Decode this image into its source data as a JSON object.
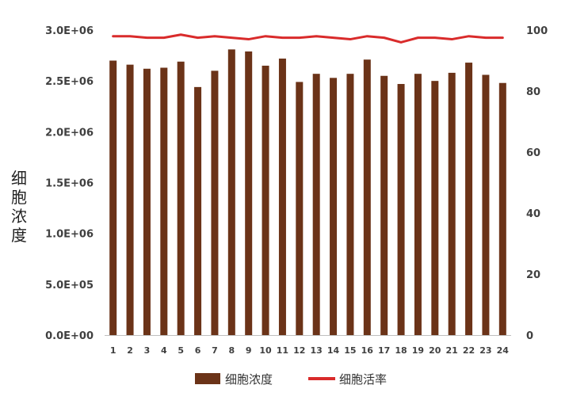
{
  "chart_data": {
    "type": "bar",
    "categories": [
      "1",
      "2",
      "3",
      "4",
      "5",
      "6",
      "7",
      "8",
      "9",
      "10",
      "11",
      "12",
      "13",
      "14",
      "15",
      "16",
      "17",
      "18",
      "19",
      "20",
      "21",
      "22",
      "23",
      "24"
    ],
    "series": [
      {
        "name": "细胞浓度",
        "type": "bar",
        "axis": "left",
        "color": "#6b3318",
        "values": [
          2700000,
          2660000,
          2620000,
          2630000,
          2690000,
          2440000,
          2600000,
          2810000,
          2790000,
          2650000,
          2720000,
          2490000,
          2570000,
          2530000,
          2570000,
          2710000,
          2550000,
          2470000,
          2570000,
          2500000,
          2580000,
          2680000,
          2560000,
          2480000
        ]
      },
      {
        "name": "细胞活率",
        "type": "line",
        "axis": "right",
        "color": "#d92b2b",
        "values": [
          98,
          98,
          97.5,
          97.5,
          98.5,
          97.5,
          98,
          97.5,
          97,
          98,
          97.5,
          97.5,
          98,
          97.5,
          97,
          98,
          97.5,
          96,
          97.5,
          97.5,
          97,
          98,
          97.5,
          97.5
        ]
      }
    ],
    "ylabel": "细胞浓度",
    "ylim": [
      0,
      3000000
    ],
    "y2lim": [
      0,
      100
    ],
    "yticks": [
      "0.0E+00",
      "5.0E+05",
      "1.0E+06",
      "1.5E+06",
      "2.0E+06",
      "2.5E+06",
      "3.0E+06"
    ],
    "y2ticks": [
      "0",
      "20",
      "40",
      "60",
      "80",
      "100"
    ],
    "grid": false,
    "legend_position": "bottom"
  }
}
